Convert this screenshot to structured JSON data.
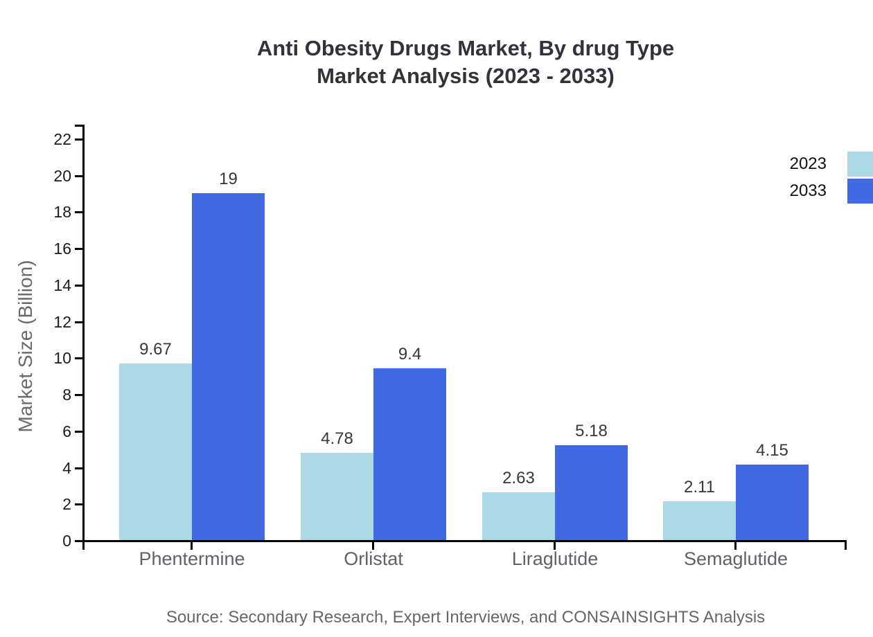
{
  "title": {
    "line1": "Anti Obesity Drugs Market, By drug Type",
    "line2": "Market Analysis (2023 - 2033)"
  },
  "source_note": "Source: Secondary Research, Expert Interviews, and CONSAINSIGHTS Analysis",
  "colors": {
    "series_2023": "#ADD8E6",
    "series_2033": "#4169E1",
    "axis": "#000000",
    "title_text": "#32323a",
    "tick_label": "#1b1b1b",
    "category_label": "#5f6368",
    "muted_text": "#6a6a6a"
  },
  "chart_data": {
    "type": "bar",
    "title": "Anti Obesity Drugs Market, By drug Type Market Analysis (2023 - 2033)",
    "categories": [
      "Phentermine",
      "Orlistat",
      "Liraglutide",
      "Semaglutide"
    ],
    "series": [
      {
        "name": "2023",
        "color": "#ADD8E6",
        "values": [
          9.67,
          4.78,
          2.63,
          2.11
        ]
      },
      {
        "name": "2033",
        "color": "#4169E1",
        "values": [
          19,
          9.4,
          5.18,
          4.15
        ]
      }
    ],
    "xlabel": "",
    "ylabel": "Market Size (Billion)",
    "ylim": [
      0,
      22
    ],
    "ytick_step": 2,
    "yticks": [
      0,
      2,
      4,
      6,
      8,
      10,
      12,
      14,
      16,
      18,
      20,
      22
    ],
    "grid": false,
    "legend_position": "top-right",
    "bar_value_labels": true
  }
}
